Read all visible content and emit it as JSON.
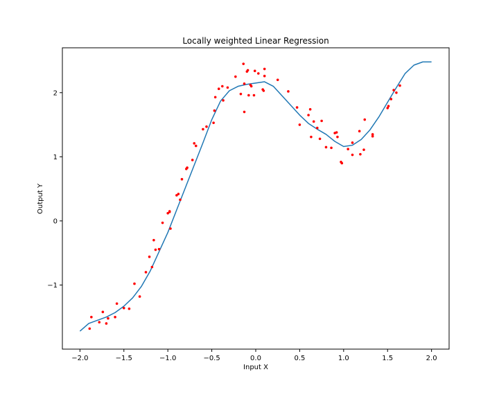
{
  "chart_data": {
    "type": "scatter",
    "title": "Locally weighted Linear Regression",
    "xlabel": "Input X",
    "ylabel": "Output Y",
    "xlim": [
      -2.2,
      2.2
    ],
    "ylim": [
      -2.0,
      2.7
    ],
    "xticks": [
      -2.0,
      -1.5,
      -1.0,
      -0.5,
      0.0,
      0.5,
      1.0,
      1.5,
      2.0
    ],
    "xtick_labels": [
      "−2.0",
      "−1.5",
      "−1.0",
      "−0.5",
      "0.0",
      "0.5",
      "1.0",
      "1.5",
      "2.0"
    ],
    "yticks": [
      -1,
      0,
      1,
      2
    ],
    "ytick_labels": [
      "−1",
      "0",
      "1",
      "2"
    ],
    "grid": false,
    "series": [
      {
        "kind": "line",
        "color": "#1f77b4",
        "x": [
          -2.0,
          -1.9,
          -1.8,
          -1.7,
          -1.6,
          -1.5,
          -1.4,
          -1.3,
          -1.2,
          -1.1,
          -1.0,
          -0.9,
          -0.8,
          -0.7,
          -0.6,
          -0.5,
          -0.4,
          -0.3,
          -0.2,
          -0.1,
          0.0,
          0.1,
          0.2,
          0.3,
          0.4,
          0.5,
          0.6,
          0.7,
          0.8,
          0.9,
          1.0,
          1.1,
          1.2,
          1.3,
          1.4,
          1.5,
          1.6,
          1.7,
          1.8,
          1.9,
          2.0
        ],
        "y": [
          -1.72,
          -1.6,
          -1.55,
          -1.5,
          -1.43,
          -1.33,
          -1.2,
          -1.02,
          -0.78,
          -0.48,
          -0.18,
          0.17,
          0.52,
          0.87,
          1.22,
          1.58,
          1.87,
          2.03,
          2.1,
          2.13,
          2.15,
          2.17,
          2.1,
          1.95,
          1.8,
          1.65,
          1.52,
          1.43,
          1.35,
          1.24,
          1.16,
          1.18,
          1.27,
          1.42,
          1.62,
          1.85,
          2.08,
          2.3,
          2.43,
          2.48,
          2.48
        ]
      },
      {
        "kind": "scatter",
        "color": "#ff0000",
        "x": [
          -1.89,
          -1.87,
          -1.78,
          -1.74,
          -1.7,
          -1.68,
          -1.6,
          -1.58,
          -1.5,
          -1.44,
          -1.38,
          -1.32,
          -1.25,
          -1.21,
          -1.18,
          -1.16,
          -1.14,
          -1.1,
          -1.06,
          -1.0,
          -0.98,
          -0.98,
          -0.97,
          -0.9,
          -0.88,
          -0.86,
          -0.84,
          -0.79,
          -0.78,
          -0.72,
          -0.7,
          -0.68,
          -0.6,
          -0.56,
          -0.48,
          -0.47,
          -0.46,
          -0.42,
          -0.38,
          -0.37,
          -0.32,
          -0.23,
          -0.17,
          -0.14,
          -0.13,
          -0.13,
          -0.1,
          -0.09,
          -0.08,
          -0.06,
          -0.05,
          -0.02,
          -0.01,
          0.03,
          0.08,
          0.09,
          0.1,
          0.1,
          0.25,
          0.37,
          0.47,
          0.5,
          0.6,
          0.62,
          0.63,
          0.66,
          0.7,
          0.73,
          0.75,
          0.8,
          0.86,
          0.9,
          0.92,
          0.93,
          0.97,
          0.98,
          1.05,
          1.1,
          1.1,
          1.18,
          1.19,
          1.23,
          1.24,
          1.33,
          1.33,
          1.5,
          1.51,
          1.54,
          1.57,
          1.6,
          1.64
        ],
        "y": [
          -1.68,
          -1.5,
          -1.58,
          -1.42,
          -1.6,
          -1.52,
          -1.5,
          -1.29,
          -1.36,
          -1.37,
          -0.98,
          -1.18,
          -0.8,
          -0.56,
          -0.72,
          -0.3,
          -0.45,
          -0.44,
          -0.03,
          0.12,
          0.15,
          0.14,
          -0.12,
          0.4,
          0.42,
          0.33,
          0.65,
          0.81,
          0.83,
          0.95,
          1.21,
          1.17,
          1.43,
          1.47,
          1.53,
          1.72,
          1.93,
          2.06,
          2.1,
          1.88,
          2.08,
          2.25,
          1.98,
          2.45,
          1.7,
          2.14,
          2.33,
          2.35,
          1.96,
          2.12,
          2.1,
          1.96,
          2.34,
          2.3,
          2.05,
          2.03,
          2.26,
          2.37,
          2.2,
          2.02,
          1.77,
          1.5,
          1.65,
          1.74,
          1.31,
          1.55,
          1.45,
          1.28,
          1.56,
          1.15,
          1.14,
          1.37,
          1.38,
          1.31,
          0.92,
          0.9,
          1.12,
          1.03,
          1.22,
          1.4,
          1.04,
          1.11,
          1.58,
          1.32,
          1.35,
          1.76,
          1.79,
          1.9,
          2.04,
          2.0,
          2.11
        ]
      }
    ]
  }
}
